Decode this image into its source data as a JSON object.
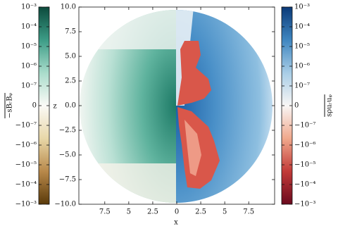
{
  "chart_data": {
    "type": "image",
    "xlabel": "x",
    "ylabel": "z",
    "xlim": [
      -10.2,
      10.2
    ],
    "ylim": [
      -10,
      10
    ],
    "xticks": [
      {
        "value": -7.5,
        "label": "7.5"
      },
      {
        "value": -5,
        "label": "5"
      },
      {
        "value": -2.5,
        "label": "2.5"
      },
      0,
      2.5,
      5,
      7.5
    ],
    "yticks": [
      {
        "value": 10,
        "label": "10.0"
      },
      7.5,
      {
        "value": 5,
        "label": "5.0"
      },
      2.5,
      {
        "value": 0,
        "label": "0.0"
      },
      {
        "value": -2.5,
        "label": "−2.5"
      },
      {
        "value": -5,
        "label": "−5.0"
      },
      {
        "value": -7.5,
        "label": "−7.5"
      },
      {
        "value": -10,
        "label": "−10.0"
      }
    ],
    "colorbars": [
      {
        "label": "−sBᵣBᵩ",
        "side": "left",
        "clim": [
          -0.001,
          0.001
        ],
        "linthresh": 1e-07,
        "colors": [
          "#5a3a0a",
          "#b8894a",
          "#e8d7a8",
          "#fbfaf7",
          "#a9dccb",
          "#3c9c86",
          "#0c4a3c"
        ],
        "ticks": [
          {
            "value": 0.001,
            "label": "10⁻³"
          },
          {
            "value": 0.0001,
            "label": "10⁻⁴"
          },
          {
            "value": 1e-05,
            "label": "10⁻⁵"
          },
          {
            "value": 1e-06,
            "label": "10⁻⁶"
          },
          {
            "value": 1e-07,
            "label": "10⁻⁷"
          },
          0,
          {
            "value": -1e-07,
            "label": "−10⁻⁷"
          },
          {
            "value": -1e-06,
            "label": "−10⁻⁶"
          },
          {
            "value": -1e-05,
            "label": "−10⁻⁵"
          },
          {
            "value": -0.0001,
            "label": "−10⁻⁴"
          },
          {
            "value": -0.001,
            "label": "−10⁻³"
          }
        ]
      },
      {
        "label": "sρuᵣuᵩ",
        "side": "right",
        "clim": [
          -0.001,
          0.001
        ],
        "linthresh": 1e-07,
        "colors": [
          "#6b0a1e",
          "#c23a38",
          "#f0a88c",
          "#f8f6f5",
          "#a8cde6",
          "#3f86c0",
          "#0b3a78"
        ],
        "ticks": [
          {
            "value": 0.001,
            "label": "10⁻³"
          },
          {
            "value": 0.0001,
            "label": "10⁻⁴"
          },
          {
            "value": 1e-05,
            "label": "10⁻⁵"
          },
          {
            "value": 1e-06,
            "label": "10⁻⁶"
          },
          {
            "value": 1e-07,
            "label": "10⁻⁷"
          },
          0,
          {
            "value": -1e-07,
            "label": "−10⁻⁷"
          },
          {
            "value": -1e-06,
            "label": "−10⁻⁶"
          },
          {
            "value": -1e-05,
            "label": "−10⁻⁵"
          },
          {
            "value": -0.0001,
            "label": "−10⁻⁴"
          },
          {
            "value": -0.001,
            "label": "−10⁻³"
          }
        ]
      }
    ]
  }
}
